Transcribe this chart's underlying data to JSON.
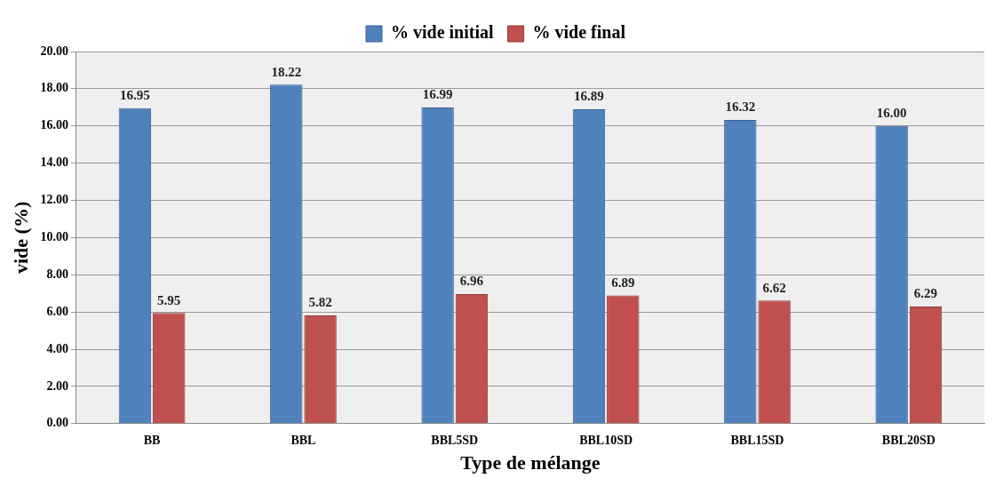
{
  "chart_data": {
    "type": "bar",
    "xlabel": "Type de mélange",
    "ylabel": "vide (%)",
    "categories": [
      "BB",
      "BBL",
      "BBL5SD",
      "BBL10SD",
      "BBL15SD",
      "BBL20SD"
    ],
    "series": [
      {
        "name": "% vide initial",
        "color": "#4f81bd",
        "values": [
          16.95,
          18.22,
          16.99,
          16.89,
          16.32,
          16.0
        ],
        "value_labels": [
          "16.95",
          "18.22",
          "16.99",
          "16.89",
          "16.32",
          "16.00"
        ]
      },
      {
        "name": "% vide final",
        "color": "#c0504d",
        "values": [
          5.95,
          5.82,
          6.96,
          6.89,
          6.62,
          6.29
        ],
        "value_labels": [
          "5.95",
          "5.82",
          "6.96",
          "6.89",
          "6.62",
          "6.29"
        ]
      }
    ],
    "ylim": [
      0,
      20
    ],
    "yticks": [
      {
        "value": 0,
        "label": "0.00"
      },
      {
        "value": 2,
        "label": "2.00"
      },
      {
        "value": 4,
        "label": "4.00"
      },
      {
        "value": 6,
        "label": "6.00"
      },
      {
        "value": 8,
        "label": "8.00"
      },
      {
        "value": 10,
        "label": "10.00"
      },
      {
        "value": 12,
        "label": "12.00"
      },
      {
        "value": 14,
        "label": "14.00"
      },
      {
        "value": 16,
        "label": "16.00"
      },
      {
        "value": 18,
        "label": "18.00"
      },
      {
        "value": 20,
        "label": "20.00"
      }
    ],
    "grid": "y",
    "legend": "top"
  }
}
